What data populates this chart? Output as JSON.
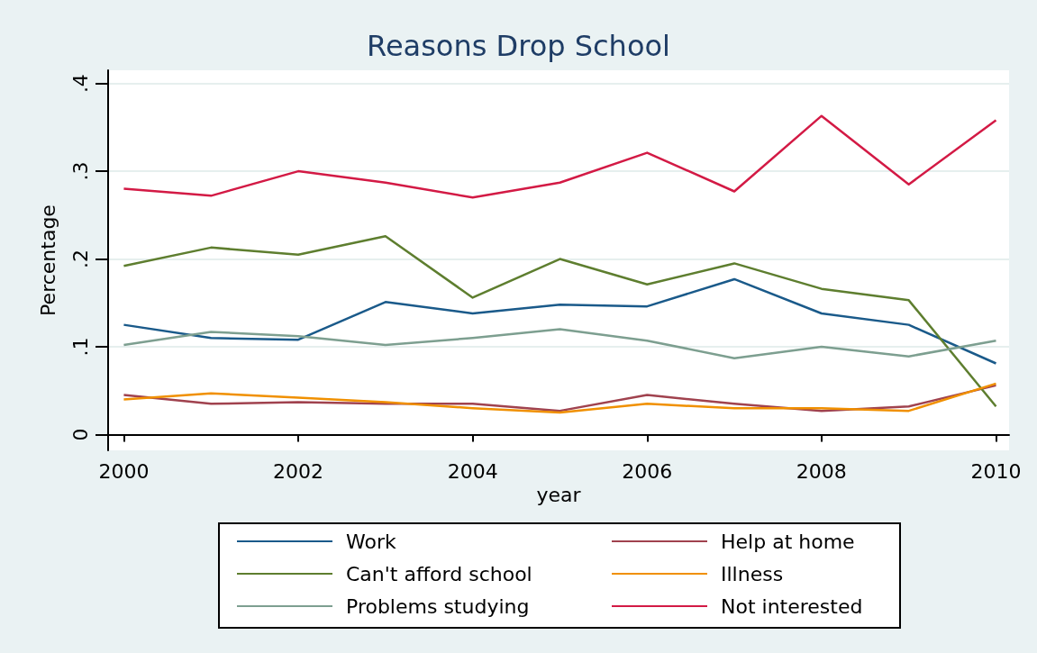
{
  "chart_data": {
    "type": "line",
    "title": "Reasons Drop School",
    "xlabel": "year",
    "ylabel": "Percentage",
    "x": [
      2000,
      2001,
      2002,
      2003,
      2004,
      2005,
      2006,
      2007,
      2008,
      2009,
      2010
    ],
    "series": [
      {
        "name": "Work",
        "color": "#1a5a8a",
        "values": [
          0.125,
          0.11,
          0.108,
          0.151,
          0.138,
          0.148,
          0.146,
          0.177,
          0.138,
          0.125,
          0.081
        ]
      },
      {
        "name": "Help at home",
        "color": "#a0424e",
        "values": [
          0.045,
          0.035,
          0.037,
          0.035,
          0.035,
          0.027,
          0.045,
          0.035,
          0.027,
          0.032,
          0.056
        ]
      },
      {
        "name": "Can't afford school",
        "color": "#5e7e2f",
        "values": [
          0.192,
          0.213,
          0.205,
          0.226,
          0.156,
          0.2,
          0.171,
          0.195,
          0.166,
          0.153,
          0.032
        ]
      },
      {
        "name": "Illness",
        "color": "#f09000",
        "values": [
          0.04,
          0.047,
          0.042,
          0.037,
          0.03,
          0.025,
          0.035,
          0.03,
          0.03,
          0.027,
          0.058
        ]
      },
      {
        "name": "Problems studying",
        "color": "#7d9f90",
        "values": [
          0.102,
          0.117,
          0.112,
          0.102,
          0.11,
          0.12,
          0.107,
          0.087,
          0.1,
          0.089,
          0.107
        ]
      },
      {
        "name": "Not interested",
        "color": "#d31a45",
        "values": [
          0.28,
          0.272,
          0.3,
          0.287,
          0.27,
          0.287,
          0.321,
          0.277,
          0.363,
          0.285,
          0.358
        ]
      }
    ],
    "xlim": [
      1999.82,
      2010.15
    ],
    "xticks": [
      2000,
      2002,
      2004,
      2006,
      2008,
      2010
    ],
    "ylim": [
      -0.018,
      0.415
    ],
    "yticks": [
      0,
      {
        "value": 0.1,
        "label": ".1"
      },
      {
        "value": 0.2,
        "label": ".2"
      },
      {
        "value": 0.3,
        "label": ".3"
      },
      {
        "value": 0.4,
        "label": ".4"
      }
    ],
    "grid": "y",
    "legend": "bottom",
    "marker": "none",
    "line_style": "solid"
  }
}
